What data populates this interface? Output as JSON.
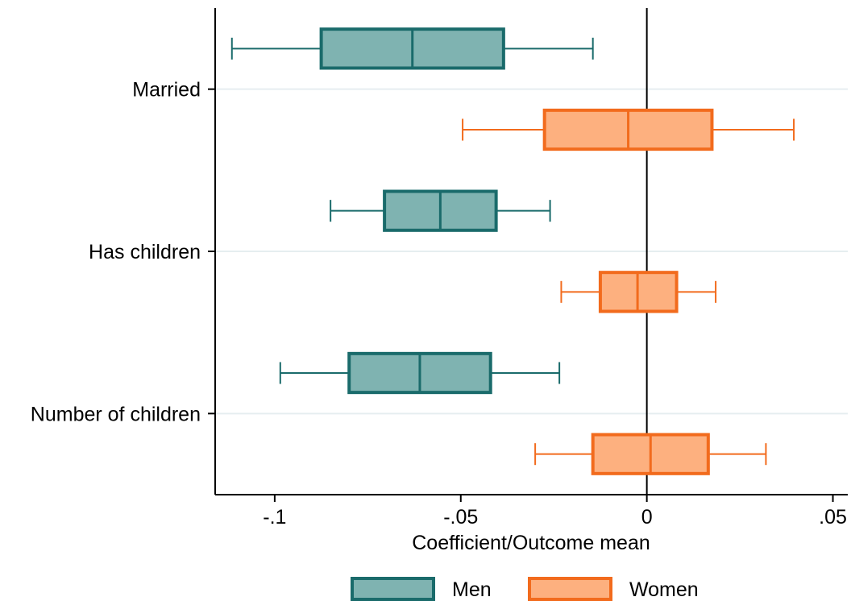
{
  "chart_data": {
    "type": "box",
    "orientation": "horizontal",
    "title": "",
    "xlabel": "Coefficient/Outcome mean",
    "ylabel": "",
    "xlim": [
      -0.116,
      0.054
    ],
    "x_ticks": [
      {
        "value": -0.1,
        "label": "-.1"
      },
      {
        "value": -0.05,
        "label": "-.05"
      },
      {
        "value": 0,
        "label": "0"
      },
      {
        "value": 0.05,
        "label": ".05"
      }
    ],
    "reference_line_x": 0,
    "grid": "horizontal lines at category ticks",
    "legend_position": "bottom",
    "categories": [
      "Married",
      "Has children",
      "Number of children"
    ],
    "series": [
      {
        "name": "Men",
        "color": "#7fb3b1",
        "stroke": "#1a6b6b",
        "boxes": [
          {
            "category": "Married",
            "whisker_low": -0.1115,
            "q1": -0.0875,
            "median": -0.063,
            "q3": -0.0385,
            "whisker_high": -0.0145
          },
          {
            "category": "Has children",
            "whisker_low": -0.085,
            "q1": -0.0705,
            "median": -0.0555,
            "q3": -0.0405,
            "whisker_high": -0.026
          },
          {
            "category": "Number of children",
            "whisker_low": -0.0985,
            "q1": -0.08,
            "median": -0.061,
            "q3": -0.042,
            "whisker_high": -0.0235
          }
        ]
      },
      {
        "name": "Women",
        "color": "#fdb07f",
        "stroke": "#f26b1d",
        "boxes": [
          {
            "category": "Married",
            "whisker_low": -0.0495,
            "q1": -0.0275,
            "median": -0.005,
            "q3": 0.0175,
            "whisker_high": 0.0395
          },
          {
            "category": "Has children",
            "whisker_low": -0.023,
            "q1": -0.0125,
            "median": -0.0025,
            "q3": 0.008,
            "whisker_high": 0.0185
          },
          {
            "category": "Number of children",
            "whisker_low": -0.03,
            "q1": -0.0145,
            "median": 0.001,
            "q3": 0.0165,
            "whisker_high": 0.032
          }
        ]
      }
    ]
  }
}
